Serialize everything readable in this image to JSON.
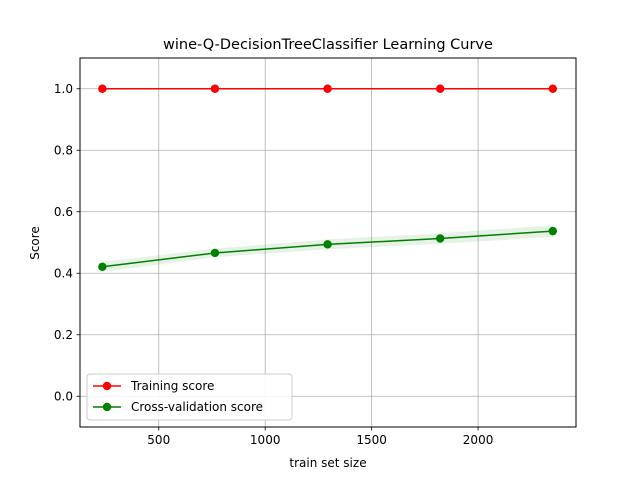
{
  "chart_data": {
    "type": "line",
    "title": "wine-Q-DecisionTreeClassifier Learning Curve",
    "xlabel": "train set size",
    "ylabel": "Score",
    "xlim": [
      130,
      2460
    ],
    "ylim": [
      -0.1,
      1.1
    ],
    "xticks": [
      500,
      1000,
      1500,
      2000
    ],
    "yticks": [
      0.0,
      0.2,
      0.4,
      0.6,
      0.8,
      1.0
    ],
    "xtick_labels": [
      "500",
      "1000",
      "1500",
      "2000"
    ],
    "ytick_labels": [
      "0.0",
      "0.2",
      "0.4",
      "0.6",
      "0.8",
      "1.0"
    ],
    "grid": true,
    "legend_position": "lower left",
    "x": [
      235,
      764,
      1293,
      1822,
      2351
    ],
    "series": [
      {
        "name": "Training score",
        "color": "#ff0000",
        "values": [
          1.0,
          1.0,
          1.0,
          1.0,
          1.0
        ],
        "band_lower": [
          1.0,
          1.0,
          1.0,
          1.0,
          1.0
        ],
        "band_upper": [
          1.0,
          1.0,
          1.0,
          1.0,
          1.0
        ]
      },
      {
        "name": "Cross-validation score",
        "color": "#008000",
        "values": [
          0.421,
          0.466,
          0.494,
          0.513,
          0.537
        ],
        "band_lower": [
          0.405,
          0.452,
          0.478,
          0.496,
          0.518
        ],
        "band_upper": [
          0.437,
          0.48,
          0.51,
          0.53,
          0.556
        ]
      }
    ]
  }
}
